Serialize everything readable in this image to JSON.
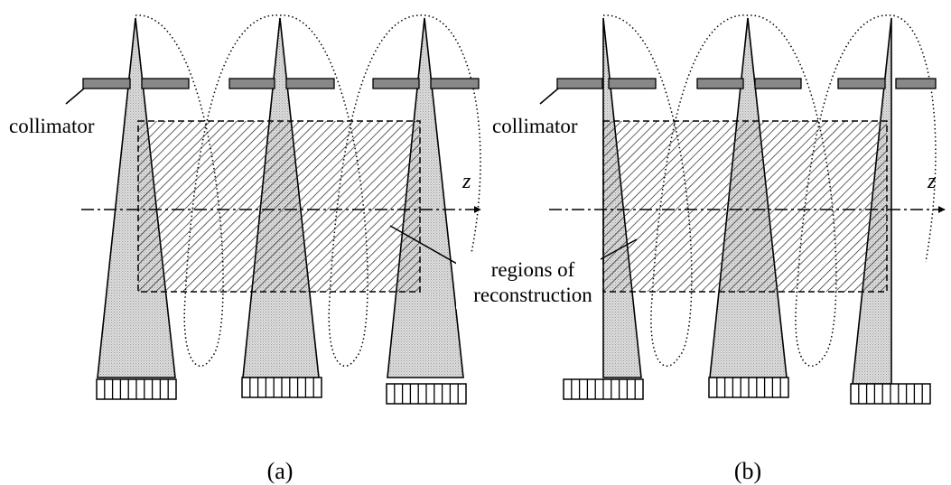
{
  "labels": {
    "collimator_a": "collimator",
    "collimator_b": "collimator",
    "z_a": "z",
    "z_b": "z",
    "regions_line1": "regions of",
    "regions_line2": "reconstruction",
    "caption_a": "(a)",
    "caption_b": "(b)"
  },
  "colors": {
    "beam_fill": "#d4d4d4",
    "collimator_fill": "#888888",
    "stroke": "#000000"
  }
}
